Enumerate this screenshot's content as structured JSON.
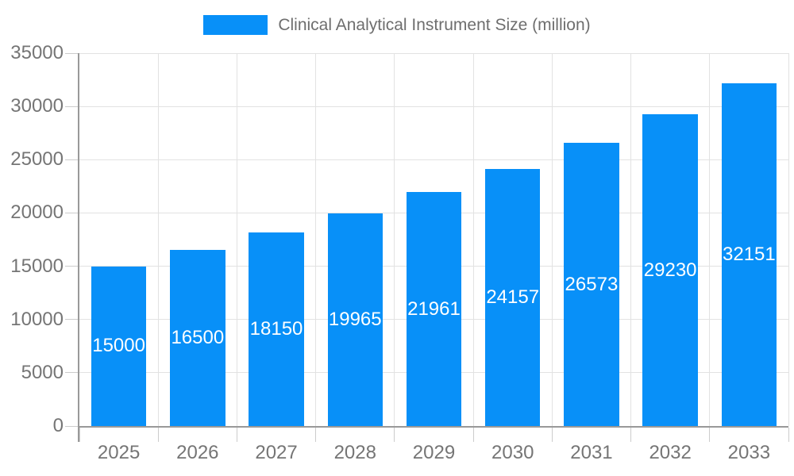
{
  "chart_data": {
    "type": "bar",
    "title": "Clinical Analytical Instrument Size (million)",
    "legend_position": "top",
    "categories": [
      "2025",
      "2026",
      "2027",
      "2028",
      "2029",
      "2030",
      "2031",
      "2032",
      "2033"
    ],
    "series": [
      {
        "name": "Clinical Analytical Instrument Size (million)",
        "values": [
          15000,
          16500,
          18150,
          19965,
          21961,
          24157,
          26573,
          29230,
          32151
        ]
      }
    ],
    "bar_value_labels": [
      "15000",
      "16500",
      "18150",
      "19965",
      "21961",
      "24157",
      "26573",
      "29230",
      "32151"
    ],
    "xlabel": "",
    "ylabel": "",
    "ylim": [
      0,
      35000
    ],
    "ytick_interval": 5000,
    "ytick_labels": [
      "0",
      "5000",
      "10000",
      "15000",
      "20000",
      "25000",
      "30000",
      "35000"
    ],
    "grid": true,
    "colors": {
      "bar": "#0890F8",
      "bar_label": "#FFFFFF",
      "axis_text": "#757575",
      "title_text": "#6E6E6E",
      "grid_line": "#E2E2E2",
      "axis_line": "#999999",
      "tick": "#CCCCCC",
      "background": "#FFFFFF"
    }
  }
}
